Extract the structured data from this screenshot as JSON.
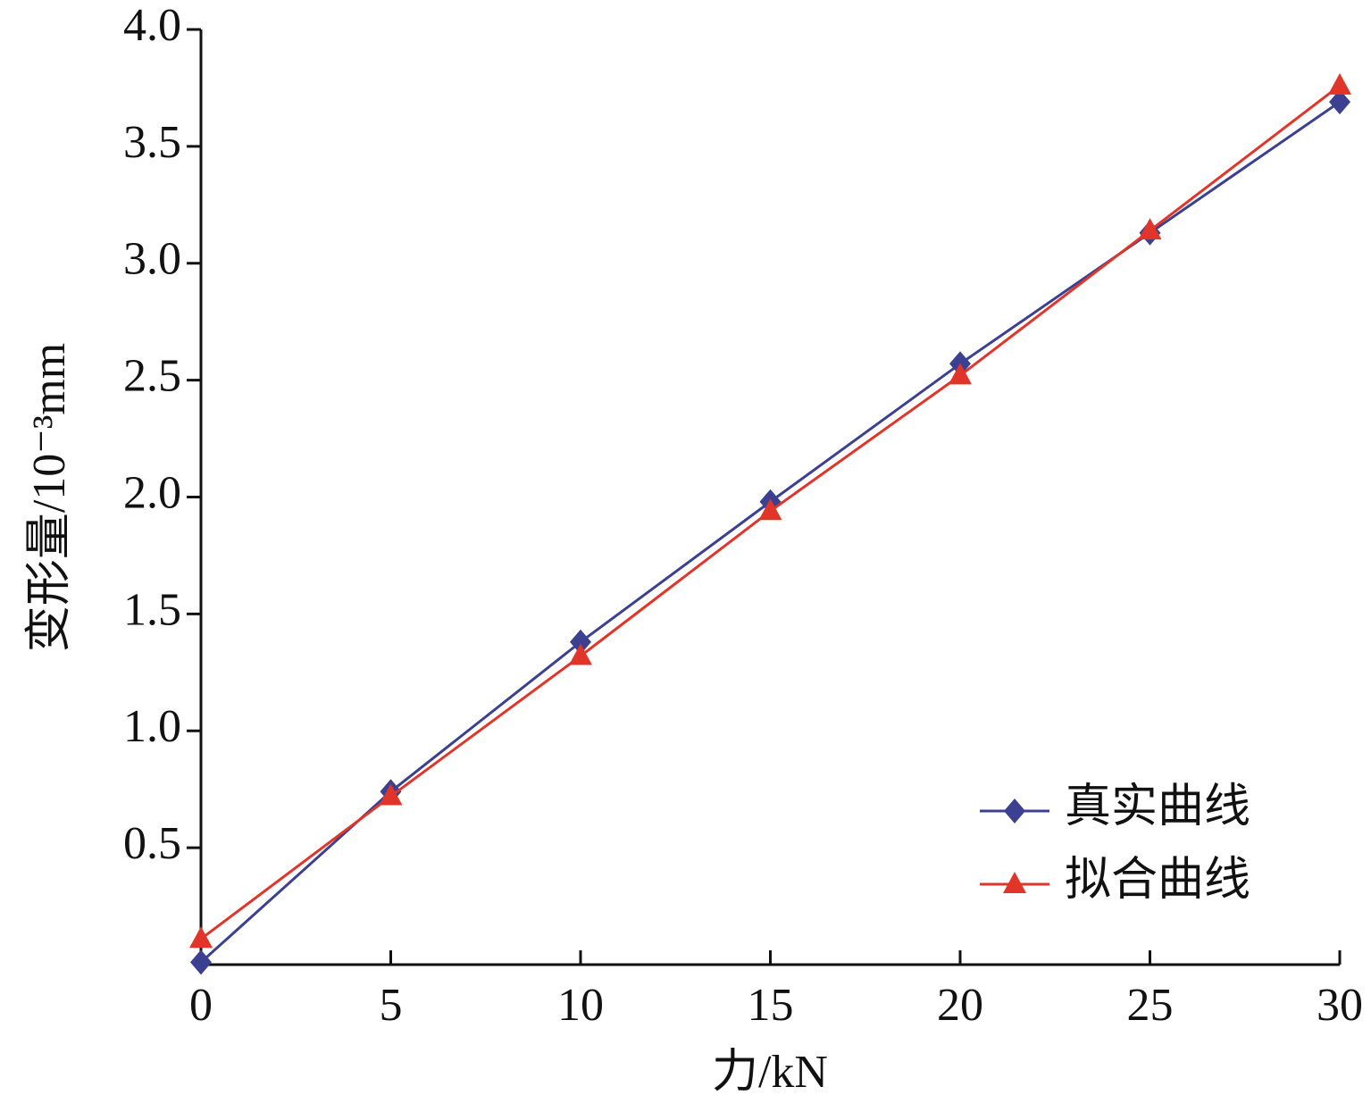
{
  "chart_data": {
    "type": "line",
    "x_label": "力/kN",
    "y_label": "变形量/10⁻³mm",
    "x": [
      0,
      5,
      10,
      15,
      20,
      25,
      30
    ],
    "series": [
      {
        "name": "真实曲线",
        "color": "#3b4190",
        "marker": "diamond",
        "values": [
          0.01,
          0.74,
          1.38,
          1.98,
          2.57,
          3.13,
          3.69
        ]
      },
      {
        "name": "拟合曲线",
        "color": "#e2352a",
        "marker": "triangle",
        "values": [
          0.11,
          0.72,
          1.32,
          1.94,
          2.52,
          3.14,
          3.76
        ]
      }
    ],
    "xlim": [
      0,
      30
    ],
    "xticks": [
      0,
      5,
      10,
      15,
      20,
      25,
      30
    ],
    "ylim": [
      0,
      4
    ],
    "yticks": [
      0.5,
      {
        "value": 1,
        "label": "1.0"
      },
      1.5,
      {
        "value": 2,
        "label": "2.0"
      },
      2.5,
      {
        "value": 3,
        "label": "3.0"
      },
      3.5,
      {
        "value": 4,
        "label": "4.0"
      }
    ],
    "legend": "lower right"
  }
}
